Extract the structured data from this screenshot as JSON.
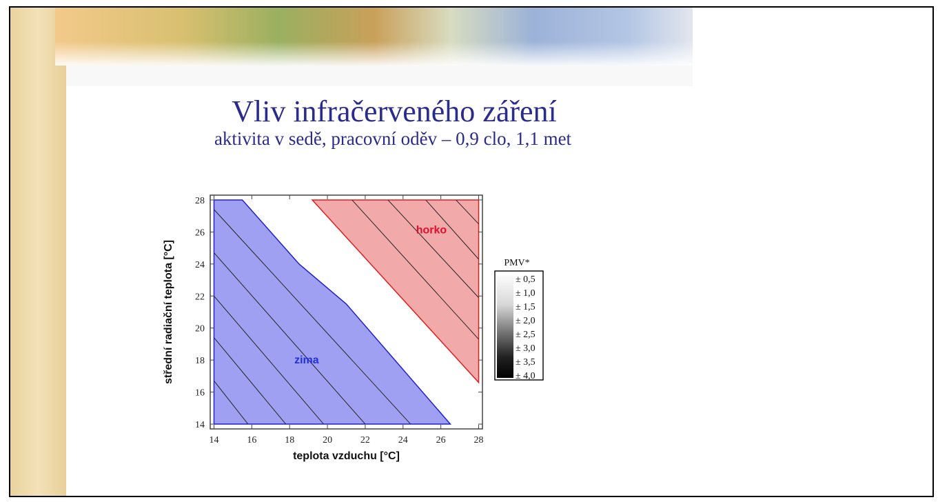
{
  "slide": {
    "title": "Vliv infračerveného záření",
    "subtitle": "aktivita v sedě, pracovní oděv – 0,9 clo, 1,1 met"
  },
  "chart_data": {
    "type": "contour",
    "xlabel": "teplota vzduchu [°C]",
    "ylabel": "střední radiační teplota [°C]",
    "xlim": [
      13.8,
      28.2
    ],
    "ylim": [
      13.7,
      28.3
    ],
    "xticks": [
      14,
      16,
      18,
      20,
      22,
      24,
      26,
      28
    ],
    "yticks": [
      14,
      16,
      18,
      20,
      22,
      24,
      26,
      28
    ],
    "regions": [
      {
        "color": "#8f8ff0",
        "edge": "#2020d0",
        "x": [
          14,
          15.5,
          18.5,
          21,
          26.5,
          14
        ],
        "y": [
          28,
          28,
          24,
          21.5,
          14,
          14
        ]
      },
      {
        "color": "#f09a9a",
        "edge": "#e02020",
        "x": [
          19.2,
          28,
          28
        ],
        "y": [
          28,
          28,
          16.6
        ]
      }
    ],
    "contours": [
      {
        "x": [
          14,
          24.4
        ],
        "y": [
          27.4,
          14
        ]
      },
      {
        "x": [
          14,
          22
        ],
        "y": [
          24.7,
          14
        ]
      },
      {
        "x": [
          14,
          19.8
        ],
        "y": [
          22,
          14
        ]
      },
      {
        "x": [
          14,
          17.8
        ],
        "y": [
          19.4,
          14
        ]
      },
      {
        "x": [
          14,
          15.8
        ],
        "y": [
          16.7,
          14
        ]
      },
      {
        "x": [
          21.3,
          28
        ],
        "y": [
          28,
          19.3
        ]
      },
      {
        "x": [
          23.2,
          28
        ],
        "y": [
          28,
          21.9
        ]
      },
      {
        "x": [
          25.2,
          28
        ],
        "y": [
          28,
          24.3
        ]
      },
      {
        "x": [
          26.8,
          28
        ],
        "y": [
          28,
          26.5
        ]
      }
    ],
    "annotations": [
      {
        "text": "horko",
        "x": 25.5,
        "y": 25.9,
        "color": "#e01030"
      },
      {
        "text": "zima",
        "x": 18.9,
        "y": 17.8,
        "color": "#2030e0"
      }
    ],
    "legend": {
      "title": "PMV*",
      "labels": [
        "± 0,5",
        "± 1,0",
        "± 1,5",
        "± 2,0",
        "± 2,5",
        "± 3,0",
        "± 3,5",
        "± 4,0"
      ]
    }
  }
}
